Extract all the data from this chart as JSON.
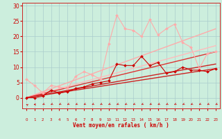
{
  "xlabel": "Vent moyen/en rafales ( km/h )",
  "bg_color": "#cceedd",
  "grid_color": "#aacccc",
  "x_ticks": [
    0,
    1,
    2,
    3,
    4,
    5,
    6,
    7,
    8,
    9,
    10,
    11,
    12,
    13,
    14,
    15,
    16,
    17,
    18,
    19,
    20,
    21,
    22,
    23
  ],
  "y_ticks": [
    0,
    5,
    10,
    15,
    20,
    25,
    30
  ],
  "ylim": [
    -3.5,
    31
  ],
  "xlim": [
    -0.5,
    23.5
  ],
  "lines": [
    {
      "x": [
        0,
        23
      ],
      "y": [
        0,
        9.5
      ],
      "color": "#cc2222",
      "lw": 1.0,
      "marker": null,
      "ms": 0,
      "zorder": 3
    },
    {
      "x": [
        0,
        23
      ],
      "y": [
        0,
        11.0
      ],
      "color": "#cc2222",
      "lw": 1.0,
      "marker": null,
      "ms": 0,
      "zorder": 3
    },
    {
      "x": [
        0,
        23
      ],
      "y": [
        0,
        15.0
      ],
      "color": "#dd3333",
      "lw": 1.0,
      "marker": null,
      "ms": 0,
      "zorder": 3
    },
    {
      "x": [
        0,
        23
      ],
      "y": [
        0,
        22.5
      ],
      "color": "#ffaaaa",
      "lw": 1.0,
      "marker": null,
      "ms": 0,
      "zorder": 2
    },
    {
      "x": [
        0,
        23
      ],
      "y": [
        0,
        17.0
      ],
      "color": "#ffbbbb",
      "lw": 1.0,
      "marker": null,
      "ms": 0,
      "zorder": 2
    },
    {
      "x": [
        0,
        1,
        2,
        3,
        4,
        5,
        6,
        7,
        8,
        9,
        10,
        11,
        12,
        13,
        14,
        15,
        16,
        17,
        18,
        19,
        20,
        21,
        22,
        23
      ],
      "y": [
        0,
        0,
        0.5,
        2.5,
        1.5,
        2.0,
        3.0,
        3.5,
        4.5,
        5.0,
        5.5,
        11.0,
        10.5,
        10.5,
        13.5,
        10.5,
        11.5,
        8.0,
        8.5,
        10.0,
        9.0,
        9.0,
        8.5,
        9.5
      ],
      "color": "#cc0000",
      "lw": 0.8,
      "marker": "D",
      "ms": 2.0,
      "zorder": 5
    },
    {
      "x": [
        0,
        1,
        2,
        3,
        4,
        5,
        6,
        7,
        8,
        9,
        10,
        11,
        12,
        13,
        14,
        15,
        16,
        17,
        18,
        19,
        20,
        21,
        22,
        23
      ],
      "y": [
        6,
        4,
        1.5,
        4.0,
        3.5,
        3.0,
        7.0,
        8.5,
        7.5,
        6.0,
        17.5,
        27.0,
        22.5,
        22.0,
        20.0,
        25.5,
        20.5,
        22.5,
        24.0,
        18.0,
        16.5,
        9.5,
        14.5,
        15.0
      ],
      "color": "#ffaaaa",
      "lw": 0.8,
      "marker": "D",
      "ms": 2.0,
      "zorder": 4
    }
  ],
  "wind_arrows": {
    "x": [
      0,
      1,
      2,
      3,
      4,
      5,
      6,
      7,
      8,
      9,
      10,
      11,
      12,
      13,
      14,
      15,
      16,
      17,
      18,
      19,
      20,
      21,
      22,
      23
    ],
    "angles_deg": [
      225,
      270,
      315,
      315,
      315,
      315,
      315,
      315,
      315,
      315,
      315,
      315,
      315,
      315,
      315,
      315,
      315,
      315,
      315,
      315,
      315,
      315,
      315,
      315
    ]
  }
}
